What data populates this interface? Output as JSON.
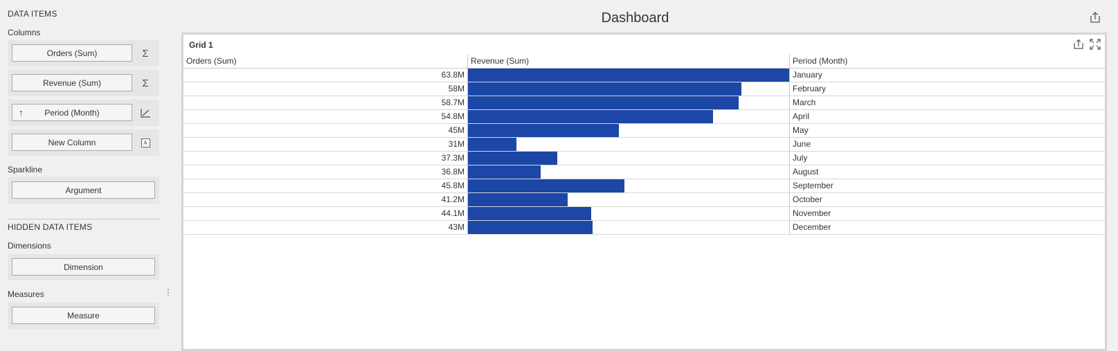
{
  "panel": {
    "data_items_header": "DATA ITEMS",
    "columns_label": "Columns",
    "columns": [
      {
        "label": "Orders (Sum)",
        "icon": "sigma-icon",
        "glyph": "Σ"
      },
      {
        "label": "Revenue (Sum)",
        "icon": "sigma-icon",
        "glyph": "Σ"
      },
      {
        "label": "Period (Month)",
        "icon": "sparkline-chart-icon",
        "glyph": "⟋",
        "sort_glyph": "↑"
      },
      {
        "label": "New Column",
        "icon": "text-type-icon",
        "glyph": "A"
      }
    ],
    "sparkline_label": "Sparkline",
    "sparkline_placeholder": "Argument",
    "hidden_header": "HIDDEN DATA ITEMS",
    "dimensions_label": "Dimensions",
    "dimensions_placeholder": "Dimension",
    "measures_label": "Measures",
    "measures_placeholder": "Measure",
    "splitter_glyph": "⋮"
  },
  "dashboard": {
    "title": "Dashboard",
    "grid": {
      "title": "Grid 1",
      "headers": [
        "Orders (Sum)",
        "Revenue (Sum)",
        "Period (Month)"
      ],
      "bar_color": "#1c47a6",
      "rows": [
        {
          "orders": "63.8M",
          "revenue_fraction": 1.0,
          "period": "January"
        },
        {
          "orders": "58M",
          "revenue_fraction": 0.852,
          "period": "February"
        },
        {
          "orders": "58.7M",
          "revenue_fraction": 0.843,
          "period": "March"
        },
        {
          "orders": "54.8M",
          "revenue_fraction": 0.763,
          "period": "April"
        },
        {
          "orders": "45M",
          "revenue_fraction": 0.47,
          "period": "May"
        },
        {
          "orders": "31M",
          "revenue_fraction": 0.15,
          "period": "June"
        },
        {
          "orders": "37.3M",
          "revenue_fraction": 0.279,
          "period": "July"
        },
        {
          "orders": "36.8M",
          "revenue_fraction": 0.226,
          "period": "August"
        },
        {
          "orders": "45.8M",
          "revenue_fraction": 0.486,
          "period": "September"
        },
        {
          "orders": "41.2M",
          "revenue_fraction": 0.31,
          "period": "October"
        },
        {
          "orders": "44.1M",
          "revenue_fraction": 0.384,
          "period": "November"
        },
        {
          "orders": "43M",
          "revenue_fraction": 0.388,
          "period": "December"
        }
      ]
    }
  }
}
